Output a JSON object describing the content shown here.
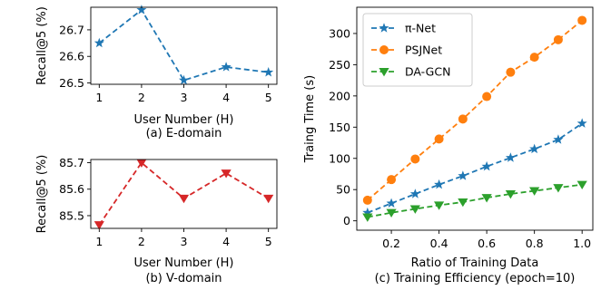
{
  "chart_data": [
    {
      "type": "line",
      "caption": "(a) E-domain",
      "xlabel": "User Number (H)",
      "ylabel": "Recall@5 (%)",
      "x": [
        1,
        2,
        3,
        4,
        5
      ],
      "xticks": [
        1,
        2,
        3,
        4,
        5
      ],
      "yticks": [
        26.5,
        26.6,
        26.7
      ],
      "xlim": [
        0.8,
        5.2
      ],
      "ylim": [
        26.495,
        26.785
      ],
      "grid": false,
      "series": [
        {
          "values": [
            26.65,
            26.775,
            26.51,
            26.56,
            26.54
          ],
          "color": "#1f77b4",
          "marker": "star",
          "linestyle": "dashed"
        }
      ]
    },
    {
      "type": "line",
      "caption": "(b) V-domain",
      "xlabel": "User Number (H)",
      "ylabel": "Recall@5 (%)",
      "x": [
        1,
        2,
        3,
        4,
        5
      ],
      "xticks": [
        1,
        2,
        3,
        4,
        5
      ],
      "yticks": [
        85.5,
        85.6,
        85.7
      ],
      "xlim": [
        0.8,
        5.2
      ],
      "ylim": [
        85.452,
        85.712
      ],
      "grid": false,
      "series": [
        {
          "values": [
            85.465,
            85.7,
            85.565,
            85.66,
            85.565
          ],
          "color": "#d62728",
          "marker": "triangle-down",
          "linestyle": "dashed"
        }
      ]
    },
    {
      "type": "line",
      "caption": "(c) Training Efficiency (epoch=10)",
      "xlabel": "Ratio of Training Data",
      "ylabel": "Traing Time (s)",
      "x": [
        0.1,
        0.2,
        0.3,
        0.4,
        0.5,
        0.6,
        0.7,
        0.8,
        0.9,
        1.0
      ],
      "xticks": [
        0.2,
        0.4,
        0.6,
        0.8,
        1.0
      ],
      "xtick_labels": [
        "0.2",
        "0.4",
        "0.6",
        "0.8",
        "1.0"
      ],
      "yticks": [
        0,
        50,
        100,
        150,
        200,
        250,
        300
      ],
      "xlim": [
        0.055,
        1.045
      ],
      "ylim": [
        -15,
        342
      ],
      "grid": false,
      "legend_position": "top-left",
      "series": [
        {
          "name": "π-Net",
          "values": [
            13,
            28,
            43,
            58,
            72,
            87,
            101,
            115,
            130,
            156
          ],
          "color": "#1f77b4",
          "marker": "star",
          "linestyle": "dashed"
        },
        {
          "name": "PSJNet",
          "values": [
            33,
            66,
            99,
            131,
            163,
            199,
            238,
            262,
            290,
            321
          ],
          "color": "#ff7f0e",
          "marker": "circle",
          "linestyle": "dashed"
        },
        {
          "name": "DA-GCN",
          "values": [
            6,
            13,
            19,
            25,
            30,
            37,
            43,
            48,
            53,
            58
          ],
          "color": "#2ca02c",
          "marker": "triangle-down",
          "linestyle": "dashed"
        }
      ]
    }
  ]
}
